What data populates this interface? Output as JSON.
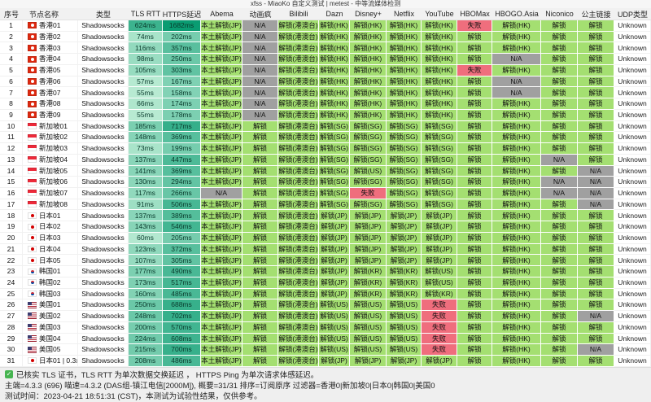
{
  "title": "xfss - MiaoKo 自定义测试 | metest - 中等流媒体检测",
  "colors": {
    "unlock_green": "#a4df71",
    "na_gray": "#a0a0a0",
    "fail_red": "#ef6e7d",
    "latency_light": "#c2efd8",
    "latency_dark": "#089b71"
  },
  "table": {
    "columns": [
      "序号",
      "节点名称",
      "类型",
      "TLS RTT",
      "HTTPS延迟",
      "Abema",
      "动画疯",
      "Bilibili",
      "Dazn",
      "Disney+",
      "Netflix",
      "YouTube",
      "HBOMax",
      "HBOGO.Asia",
      "Niconico",
      "公主链接",
      "UDP类型"
    ],
    "rows": [
      {
        "no": 1,
        "flag": "hk",
        "name": "香港01",
        "type": "Shadowsocks",
        "tls_ms": 624,
        "https_ms": 1682,
        "cells": [
          "本土解锁(JP)",
          "N/A",
          "解锁(港澳台)",
          "解锁(HK)",
          "解锁(HK)",
          "解锁(HK)",
          "解锁(HK)",
          "失败",
          "解锁(HK)",
          "解锁",
          "解锁",
          "Unknown"
        ]
      },
      {
        "no": 2,
        "flag": "hk",
        "name": "香港02",
        "type": "Shadowsocks",
        "tls_ms": 74,
        "https_ms": 202,
        "cells": [
          "本土解锁(JP)",
          "N/A",
          "解锁(港澳台)",
          "解锁(HK)",
          "解锁(HK)",
          "解锁(HK)",
          "解锁(HK)",
          "解锁",
          "解锁(HK)",
          "解锁",
          "解锁",
          "Unknown"
        ]
      },
      {
        "no": 3,
        "flag": "hk",
        "name": "香港03",
        "type": "Shadowsocks",
        "tls_ms": 116,
        "https_ms": 357,
        "cells": [
          "本土解锁(JP)",
          "N/A",
          "解锁(港澳台)",
          "解锁(HK)",
          "解锁(HK)",
          "解锁(HK)",
          "解锁(HK)",
          "解锁",
          "解锁(HK)",
          "解锁",
          "解锁",
          "Unknown"
        ]
      },
      {
        "no": 4,
        "flag": "hk",
        "name": "香港04",
        "type": "Shadowsocks",
        "tls_ms": 98,
        "https_ms": 250,
        "cells": [
          "本土解锁(JP)",
          "N/A",
          "解锁(港澳台)",
          "解锁(HK)",
          "解锁(HK)",
          "解锁(HK)",
          "解锁(HK)",
          "解锁",
          "N/A",
          "解锁",
          "解锁",
          "Unknown"
        ]
      },
      {
        "no": 5,
        "flag": "hk",
        "name": "香港05",
        "type": "Shadowsocks",
        "tls_ms": 105,
        "https_ms": 303,
        "cells": [
          "本土解锁(JP)",
          "N/A",
          "解锁(港澳台)",
          "解锁(HK)",
          "解锁(HK)",
          "解锁(HK)",
          "解锁(HK)",
          "失败",
          "解锁(HK)",
          "解锁",
          "解锁",
          "Unknown"
        ]
      },
      {
        "no": 6,
        "flag": "hk",
        "name": "香港06",
        "type": "Shadowsocks",
        "tls_ms": 57,
        "https_ms": 167,
        "cells": [
          "本土解锁(JP)",
          "N/A",
          "解锁(港澳台)",
          "解锁(HK)",
          "解锁(HK)",
          "解锁(HK)",
          "解锁(HK)",
          "解锁",
          "N/A",
          "解锁",
          "解锁",
          "Unknown"
        ]
      },
      {
        "no": 7,
        "flag": "hk",
        "name": "香港07",
        "type": "Shadowsocks",
        "tls_ms": 55,
        "https_ms": 158,
        "cells": [
          "本土解锁(JP)",
          "N/A",
          "解锁(港澳台)",
          "解锁(HK)",
          "解锁(HK)",
          "解锁(HK)",
          "解锁(HK)",
          "解锁",
          "N/A",
          "解锁",
          "解锁",
          "Unknown"
        ]
      },
      {
        "no": 8,
        "flag": "hk",
        "name": "香港08",
        "type": "Shadowsocks",
        "tls_ms": 66,
        "https_ms": 174,
        "cells": [
          "本土解锁(JP)",
          "N/A",
          "解锁(港澳台)",
          "解锁(HK)",
          "解锁(HK)",
          "解锁(HK)",
          "解锁(HK)",
          "解锁",
          "解锁(HK)",
          "解锁",
          "解锁",
          "Unknown"
        ]
      },
      {
        "no": 9,
        "flag": "hk",
        "name": "香港09",
        "type": "Shadowsocks",
        "tls_ms": 55,
        "https_ms": 178,
        "cells": [
          "本土解锁(JP)",
          "N/A",
          "解锁(港澳台)",
          "解锁(HK)",
          "解锁(HK)",
          "解锁(HK)",
          "解锁(HK)",
          "解锁",
          "解锁(HK)",
          "解锁",
          "解锁",
          "Unknown"
        ]
      },
      {
        "no": 10,
        "flag": "sg",
        "name": "新加坡01",
        "type": "Shadowsocks",
        "tls_ms": 185,
        "https_ms": 717,
        "cells": [
          "本土解锁(JP)",
          "解锁",
          "解锁(港澳台)",
          "解锁(SG)",
          "解锁(SG)",
          "解锁(SG)",
          "解锁(SG)",
          "解锁",
          "解锁(HK)",
          "解锁",
          "解锁",
          "Unknown"
        ]
      },
      {
        "no": 11,
        "flag": "sg",
        "name": "新加坡02",
        "type": "Shadowsocks",
        "tls_ms": 148,
        "https_ms": 369,
        "cells": [
          "本土解锁(JP)",
          "解锁",
          "解锁(港澳台)",
          "解锁(SG)",
          "解锁(SG)",
          "解锁(SG)",
          "解锁(SG)",
          "解锁",
          "解锁(HK)",
          "解锁",
          "解锁",
          "Unknown"
        ]
      },
      {
        "no": 12,
        "flag": "sg",
        "name": "新加坡03",
        "type": "Shadowsocks",
        "tls_ms": 73,
        "https_ms": 199,
        "cells": [
          "本土解锁(JP)",
          "解锁",
          "解锁(港澳台)",
          "解锁(SG)",
          "解锁(SG)",
          "解锁(SG)",
          "解锁(SG)",
          "解锁",
          "解锁(HK)",
          "解锁",
          "解锁",
          "Unknown"
        ]
      },
      {
        "no": 13,
        "flag": "sg",
        "name": "新加坡04",
        "type": "Shadowsocks",
        "tls_ms": 137,
        "https_ms": 447,
        "cells": [
          "本土解锁(JP)",
          "解锁",
          "解锁(港澳台)",
          "解锁(SG)",
          "解锁(SG)",
          "解锁(SG)",
          "解锁(SG)",
          "解锁",
          "解锁(HK)",
          "N/A",
          "解锁",
          "Unknown"
        ]
      },
      {
        "no": 14,
        "flag": "sg",
        "name": "新加坡05",
        "type": "Shadowsocks",
        "tls_ms": 141,
        "https_ms": 369,
        "cells": [
          "本土解锁(JP)",
          "解锁",
          "解锁(港澳台)",
          "解锁(SG)",
          "解锁(US)",
          "解锁(SG)",
          "解锁(SG)",
          "解锁",
          "解锁(HK)",
          "解锁",
          "N/A",
          "Unknown"
        ]
      },
      {
        "no": 15,
        "flag": "sg",
        "name": "新加坡06",
        "type": "Shadowsocks",
        "tls_ms": 130,
        "https_ms": 294,
        "cells": [
          "本土解锁(JP)",
          "解锁",
          "解锁(港澳台)",
          "解锁(SG)",
          "解锁(SG)",
          "解锁(SG)",
          "解锁(SG)",
          "解锁",
          "解锁(HK)",
          "N/A",
          "N/A",
          "Unknown"
        ]
      },
      {
        "no": 16,
        "flag": "sg",
        "name": "新加坡07",
        "type": "Shadowsocks",
        "tls_ms": 117,
        "https_ms": 266,
        "cells": [
          "N/A",
          "解锁",
          "解锁(港澳台)",
          "解锁(SG)",
          "失败",
          "解锁(SG)",
          "解锁(SG)",
          "解锁",
          "解锁(HK)",
          "N/A",
          "N/A",
          "Unknown"
        ]
      },
      {
        "no": 17,
        "flag": "sg",
        "name": "新加坡08",
        "type": "Shadowsocks",
        "tls_ms": 91,
        "https_ms": 506,
        "cells": [
          "本土解锁(JP)",
          "解锁",
          "解锁(港澳台)",
          "解锁(SG)",
          "解锁(SG)",
          "解锁(SG)",
          "解锁(SG)",
          "解锁",
          "解锁(HK)",
          "解锁",
          "N/A",
          "Unknown"
        ]
      },
      {
        "no": 18,
        "flag": "jp",
        "name": "日本01",
        "type": "Shadowsocks",
        "tls_ms": 137,
        "https_ms": 389,
        "cells": [
          "本土解锁(JP)",
          "解锁",
          "解锁(港澳台)",
          "解锁(JP)",
          "解锁(JP)",
          "解锁(JP)",
          "解锁(JP)",
          "解锁",
          "解锁(HK)",
          "解锁",
          "解锁",
          "Unknown"
        ]
      },
      {
        "no": 19,
        "flag": "jp",
        "name": "日本02",
        "type": "Shadowsocks",
        "tls_ms": 143,
        "https_ms": 546,
        "cells": [
          "本土解锁(JP)",
          "解锁",
          "解锁(港澳台)",
          "解锁(JP)",
          "解锁(JP)",
          "解锁(JP)",
          "解锁(JP)",
          "解锁",
          "解锁(HK)",
          "解锁",
          "解锁",
          "Unknown"
        ]
      },
      {
        "no": 20,
        "flag": "jp",
        "name": "日本03",
        "type": "Shadowsocks",
        "tls_ms": 60,
        "https_ms": 205,
        "cells": [
          "本土解锁(JP)",
          "解锁",
          "解锁(港澳台)",
          "解锁(JP)",
          "解锁(JP)",
          "解锁(JP)",
          "解锁(JP)",
          "解锁",
          "解锁(HK)",
          "解锁",
          "解锁",
          "Unknown"
        ]
      },
      {
        "no": 21,
        "flag": "jp",
        "name": "日本04",
        "type": "Shadowsocks",
        "tls_ms": 123,
        "https_ms": 372,
        "cells": [
          "本土解锁(JP)",
          "解锁",
          "解锁(港澳台)",
          "解锁(JP)",
          "解锁(JP)",
          "解锁(JP)",
          "解锁(JP)",
          "解锁",
          "解锁(HK)",
          "解锁",
          "解锁",
          "Unknown"
        ]
      },
      {
        "no": 22,
        "flag": "jp",
        "name": "日本05",
        "type": "Shadowsocks",
        "tls_ms": 107,
        "https_ms": 305,
        "cells": [
          "本土解锁(JP)",
          "解锁",
          "解锁(港澳台)",
          "解锁(JP)",
          "解锁(JP)",
          "解锁(JP)",
          "解锁(JP)",
          "解锁",
          "解锁(HK)",
          "解锁",
          "解锁",
          "Unknown"
        ]
      },
      {
        "no": 23,
        "flag": "kr",
        "name": "韩国01",
        "type": "Shadowsocks",
        "tls_ms": 177,
        "https_ms": 490,
        "cells": [
          "本土解锁(JP)",
          "解锁",
          "解锁(港澳台)",
          "解锁(JP)",
          "解锁(KR)",
          "解锁(KR)",
          "解锁(US)",
          "解锁",
          "解锁(HK)",
          "解锁",
          "解锁",
          "Unknown"
        ]
      },
      {
        "no": 24,
        "flag": "kr",
        "name": "韩国02",
        "type": "Shadowsocks",
        "tls_ms": 173,
        "https_ms": 517,
        "cells": [
          "本土解锁(JP)",
          "解锁",
          "解锁(港澳台)",
          "解锁(JP)",
          "解锁(KR)",
          "解锁(KR)",
          "解锁(US)",
          "解锁",
          "解锁(HK)",
          "解锁",
          "解锁",
          "Unknown"
        ]
      },
      {
        "no": 25,
        "flag": "kr",
        "name": "韩国03",
        "type": "Shadowsocks",
        "tls_ms": 160,
        "https_ms": 485,
        "cells": [
          "本土解锁(JP)",
          "解锁",
          "解锁(港澳台)",
          "解锁(JP)",
          "解锁(KR)",
          "解锁(KR)",
          "解锁(KR)",
          "解锁",
          "解锁(HK)",
          "解锁",
          "解锁",
          "Unknown"
        ]
      },
      {
        "no": 26,
        "flag": "us",
        "name": "美国01",
        "type": "Shadowsocks",
        "tls_ms": 250,
        "https_ms": 688,
        "cells": [
          "本土解锁(JP)",
          "解锁",
          "解锁(港澳台)",
          "解锁(US)",
          "解锁(US)",
          "解锁(US)",
          "失败",
          "解锁",
          "解锁(HK)",
          "解锁",
          "解锁",
          "Unknown"
        ]
      },
      {
        "no": 27,
        "flag": "us",
        "name": "美国02",
        "type": "Shadowsocks",
        "tls_ms": 248,
        "https_ms": 702,
        "cells": [
          "本土解锁(JP)",
          "解锁",
          "解锁(港澳台)",
          "解锁(US)",
          "解锁(US)",
          "解锁(US)",
          "失败",
          "解锁",
          "解锁(HK)",
          "解锁",
          "N/A",
          "Unknown"
        ]
      },
      {
        "no": 28,
        "flag": "us",
        "name": "美国03",
        "type": "Shadowsocks",
        "tls_ms": 200,
        "https_ms": 570,
        "cells": [
          "本土解锁(JP)",
          "解锁",
          "解锁(港澳台)",
          "解锁(US)",
          "解锁(US)",
          "解锁(US)",
          "失败",
          "解锁",
          "解锁(HK)",
          "解锁",
          "解锁",
          "Unknown"
        ]
      },
      {
        "no": 29,
        "flag": "us",
        "name": "美国04",
        "type": "Shadowsocks",
        "tls_ms": 224,
        "https_ms": 608,
        "cells": [
          "本土解锁(JP)",
          "解锁",
          "解锁(港澳台)",
          "解锁(US)",
          "解锁(US)",
          "解锁(US)",
          "失败",
          "解锁",
          "解锁(HK)",
          "解锁",
          "解锁",
          "Unknown"
        ]
      },
      {
        "no": 30,
        "flag": "us",
        "name": "美国05",
        "type": "Shadowsocks",
        "tls_ms": 215,
        "https_ms": 700,
        "cells": [
          "本土解锁(JP)",
          "解锁",
          "解锁(港澳台)",
          "解锁(US)",
          "解锁(US)",
          "解锁(US)",
          "失败",
          "解锁",
          "解锁(HK)",
          "解锁",
          "N/A",
          "Unknown"
        ]
      },
      {
        "no": 31,
        "flag": "jp",
        "name": "日本01 | 0.3x",
        "type": "Shadowsocks",
        "tls_ms": 208,
        "https_ms": 486,
        "cells": [
          "本土解锁(JP)",
          "解锁",
          "解锁(港澳台)",
          "解锁(JP)",
          "解锁(JP)",
          "解锁(JP)",
          "解锁(JP)",
          "解锁",
          "解锁(HK)",
          "解锁",
          "解锁",
          "Unknown"
        ]
      }
    ]
  },
  "footer": {
    "line1": "已核实 TLS 证书，TLS RTT 为单次数据交换延迟 ， HTTPS Ping 为单次请求体感延迟。",
    "line2": "主端=4.3.3 (696) 喵速=4.3.2 (DAS组-镇江电信[2000M]), 概要=31/31 排序=订阅原序 过滤器=香港0|新加坡0|日本0|韩国0|美国0",
    "line3": "测试时间：2023-04-21 18:51:31 (CST)，本测试为试验性结果，仅供参考。"
  }
}
